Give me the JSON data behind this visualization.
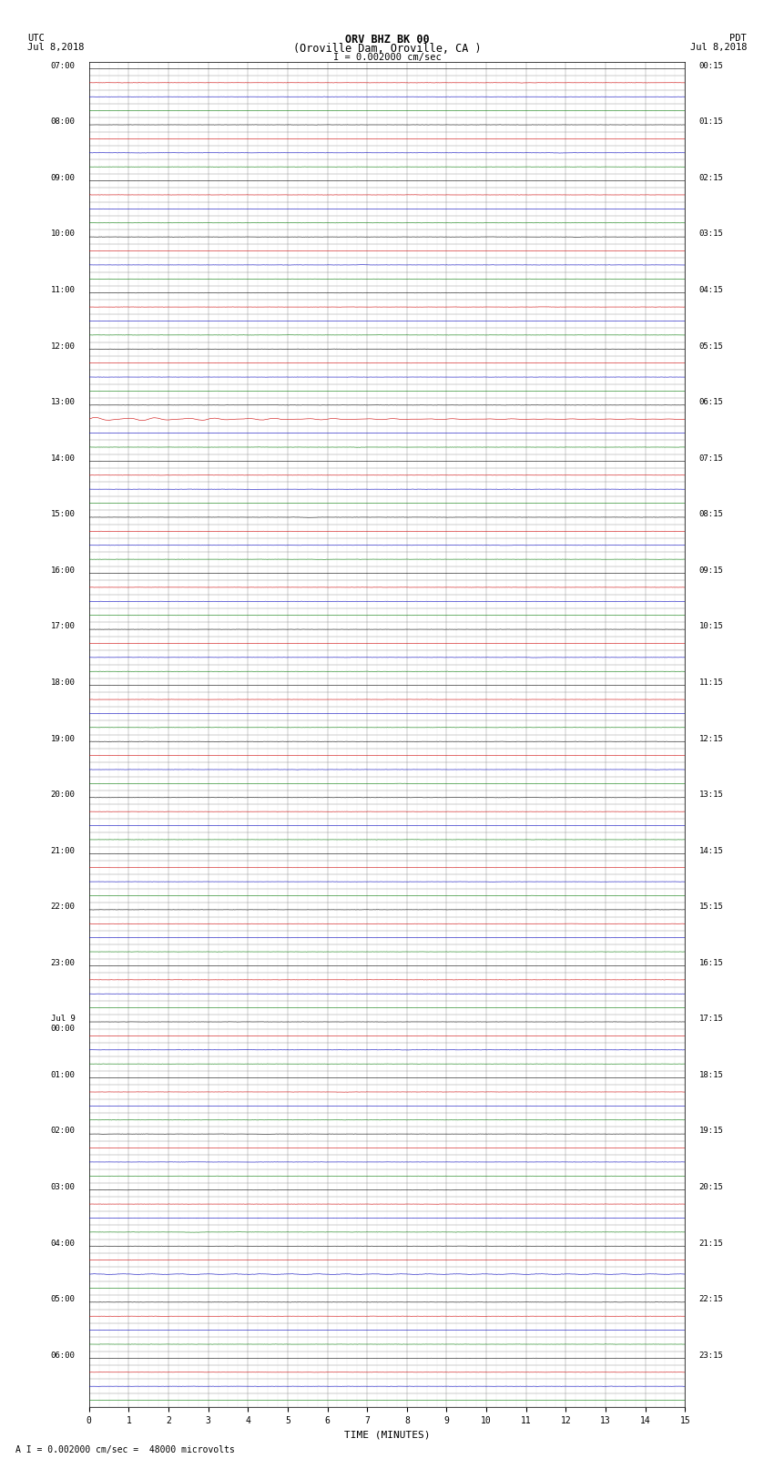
{
  "title_line1": "ORV BHZ BK 00",
  "title_line2": "(Oroville Dam, Oroville, CA )",
  "title_line3": "I = 0.002000 cm/sec",
  "left_label_top": "UTC",
  "left_label_bot": "Jul 8,2018",
  "right_label_top": "PDT",
  "right_label_bot": "Jul 8,2018",
  "xlabel": "TIME (MINUTES)",
  "footer": "A I = 0.002000 cm/sec =  48000 microvolts",
  "x_ticks": [
    0,
    1,
    2,
    3,
    4,
    5,
    6,
    7,
    8,
    9,
    10,
    11,
    12,
    13,
    14,
    15
  ],
  "x_lim": [
    0,
    15
  ],
  "background_color": "#ffffff",
  "line_color_black": "#000000",
  "line_color_red": "#cc0000",
  "line_color_blue": "#0000bb",
  "line_color_green": "#007700",
  "grid_color_major": "#888888",
  "grid_color_minor": "#bbbbbb",
  "trace_amplitude": 0.012,
  "earthquake_amplitude": 0.09,
  "num_hours": 24,
  "rows_per_hour": 4,
  "left_hour_labels": [
    "07:00",
    "08:00",
    "09:00",
    "10:00",
    "11:00",
    "12:00",
    "13:00",
    "14:00",
    "15:00",
    "16:00",
    "17:00",
    "18:00",
    "19:00",
    "20:00",
    "21:00",
    "22:00",
    "23:00",
    "Jul 9\n00:00",
    "01:00",
    "02:00",
    "03:00",
    "04:00",
    "05:00",
    "06:00"
  ],
  "right_hour_labels": [
    "00:15",
    "01:15",
    "02:15",
    "03:15",
    "04:15",
    "05:15",
    "06:15",
    "07:15",
    "08:15",
    "09:15",
    "10:15",
    "11:15",
    "12:15",
    "13:15",
    "14:15",
    "15:15",
    "16:15",
    "17:15",
    "18:15",
    "19:15",
    "20:15",
    "21:15",
    "22:15",
    "23:15"
  ],
  "channel_colors": [
    "#000000",
    "#cc0000",
    "#0000bb",
    "#007700"
  ],
  "earthquake_row_abs": 25,
  "earthquake_channel": 1,
  "small_event_row_abs": 57,
  "small_event_channel": 1,
  "blue_event_row_abs": 61,
  "blue_event_channel": 2
}
